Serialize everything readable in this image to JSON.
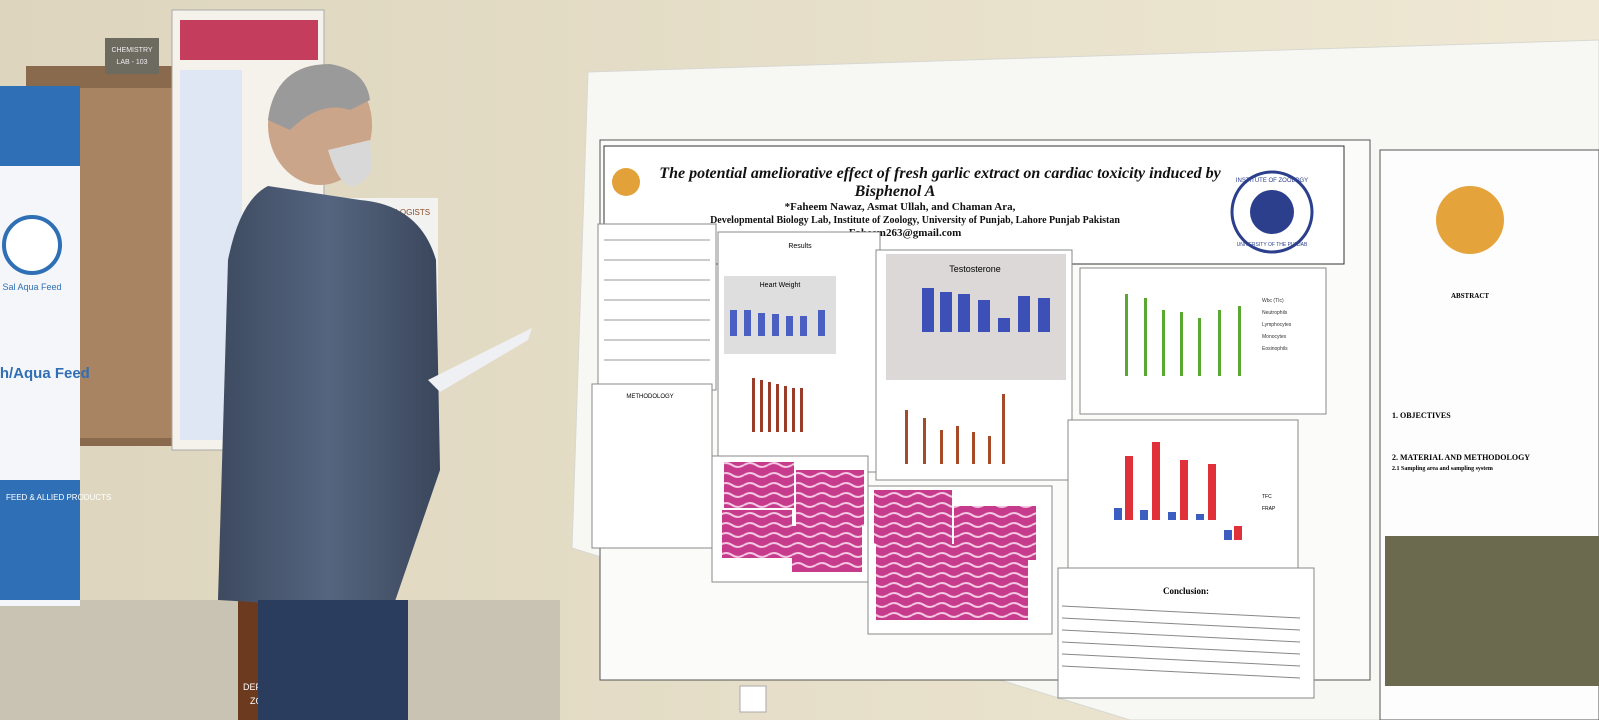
{
  "room": {
    "door_sign": [
      "CHEMISTRY",
      "LAB - 103"
    ]
  },
  "banner": {
    "brand": "Sal Aqua Feed",
    "slogan": "Fish/Aqua Feed",
    "footer": "FEED & ALLIED PRODUCTS"
  },
  "standee": {
    "title": "THE ZOOLOGISTS",
    "bottom": [
      "DEPARTMENT",
      "ZOOLO"
    ]
  },
  "poster": {
    "title": [
      "The potential ameliorative effect of fresh garlic extract on cardiac toxicity induced by",
      "Bisphenol A"
    ],
    "authors": "*Faheem Nawaz, Asmat Ullah, and Chaman Ara,",
    "affiliation": "Developmental Biology Lab, Institute of Zoology, University of Punjab, Lahore Punjab Pakistan",
    "email": "Faheem263@gmail.com",
    "logo_text": [
      "INSTITUTE OF ZOOLOGY",
      "UNIVERSITY OF THE PUNJAB"
    ],
    "sections": {
      "results": "Results",
      "methodology": "METHODOLOGY",
      "conclusion": "Conclusion:"
    },
    "charts": {
      "heart": "Heart Weight",
      "testosterone": "Testosterone",
      "blood_legend": [
        "Wbc (TIc)",
        "Neutrophils",
        "Lymphocytes",
        "Monocytes",
        "Eosinophils"
      ],
      "antiox_legend": [
        "TFC",
        "FRAP"
      ]
    }
  },
  "side_poster": {
    "heading": "ABSTRACT",
    "objectives": "1. OBJECTIVES",
    "methods": "2. MATERIAL AND METHODOLOGY",
    "sampling": "2.1 Sampling area and sampling system"
  }
}
